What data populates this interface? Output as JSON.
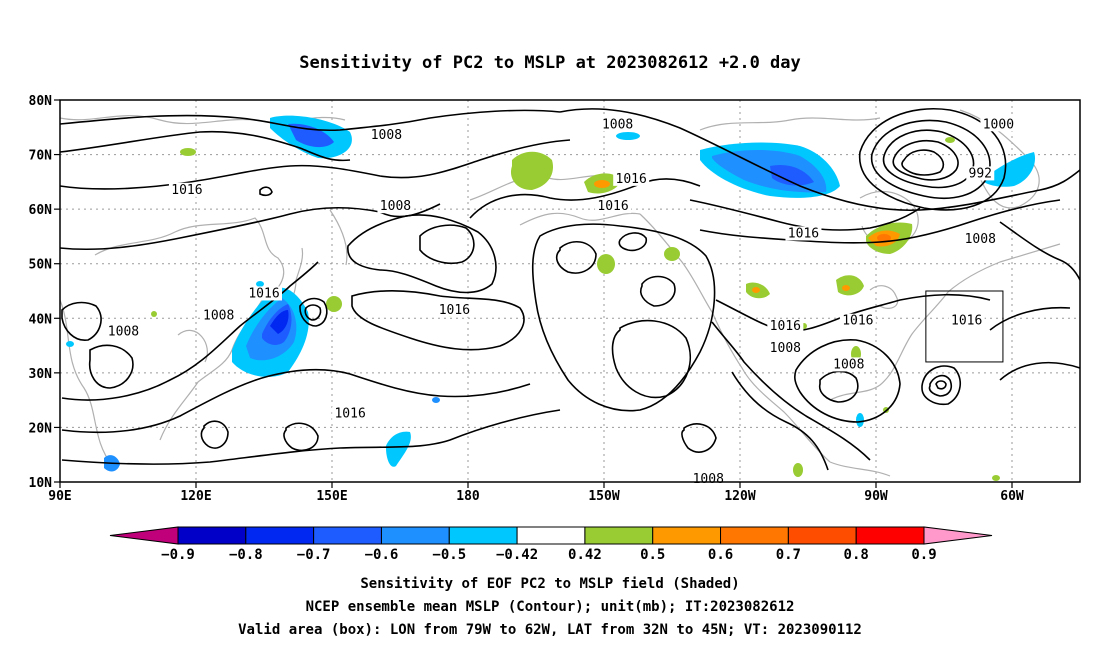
{
  "title": "Sensitivity of PC2 to MSLP at 2023082612 +2.0 day",
  "map": {
    "lat_labels": [
      "80N",
      "70N",
      "60N",
      "50N",
      "40N",
      "30N",
      "20N",
      "10N"
    ],
    "lon_labels": [
      "90E",
      "120E",
      "150E",
      "180",
      "150W",
      "120W",
      "90W",
      "60W"
    ],
    "lat_range": [
      10,
      80
    ],
    "lon_range": [
      90,
      315
    ]
  },
  "contours": {
    "unit": "mb",
    "labels": [
      {
        "text": "1008",
        "lon": 162,
        "lat": 73
      },
      {
        "text": "1016",
        "lon": 118,
        "lat": 63
      },
      {
        "text": "1008",
        "lon": 164,
        "lat": 60
      },
      {
        "text": "1016",
        "lon": 135,
        "lat": 44
      },
      {
        "text": "1008",
        "lon": 125,
        "lat": 40
      },
      {
        "text": "1008",
        "lon": 104,
        "lat": 37
      },
      {
        "text": "1016",
        "lon": 177,
        "lat": 41
      },
      {
        "text": "1016",
        "lon": 154,
        "lat": 22
      },
      {
        "text": "1008",
        "lon": 213,
        "lat": 75
      },
      {
        "text": "1016",
        "lon": 216,
        "lat": 65
      },
      {
        "text": "1016",
        "lon": 212,
        "lat": 60
      },
      {
        "text": "1016",
        "lon": 254,
        "lat": 55
      },
      {
        "text": "1000",
        "lon": 297,
        "lat": 75
      },
      {
        "text": "992",
        "lon": 293,
        "lat": 66
      },
      {
        "text": "1008",
        "lon": 293,
        "lat": 54
      },
      {
        "text": "1016",
        "lon": 250,
        "lat": 38
      },
      {
        "text": "1016",
        "lon": 266,
        "lat": 39
      },
      {
        "text": "1008",
        "lon": 250,
        "lat": 34
      },
      {
        "text": "1008",
        "lon": 264,
        "lat": 31
      },
      {
        "text": "1016",
        "lon": 290,
        "lat": 39
      },
      {
        "text": "1008",
        "lon": 233,
        "lat": 10
      }
    ]
  },
  "shading": {
    "colors": {
      "neg_0.9": "#c0007a",
      "neg_0.8": "#0000c8",
      "neg_0.7": "#0028f0",
      "neg_0.6": "#1e5cff",
      "neg_0.5": "#1e90ff",
      "neg_0.42": "#00c8ff",
      "pos_0.42": "#99cc33",
      "pos_0.5": "#ff9900",
      "pos_0.6": "#ff7700",
      "pos_0.7": "#ff4d00",
      "pos_0.8": "#ff0000",
      "pos_0.9": "#ff99cc"
    }
  },
  "valid_box": {
    "lon_min": -79,
    "lon_max": -62,
    "lat_min": 32,
    "lat_max": 45
  },
  "colorbar": {
    "colors": [
      "#c0007a",
      "#0000c8",
      "#0028f0",
      "#1e5cff",
      "#1e90ff",
      "#00c8ff",
      "#ffffff",
      "#99cc33",
      "#ff9900",
      "#ff7700",
      "#ff4d00",
      "#ff0000",
      "#ff99cc"
    ],
    "tick_labels": [
      "−0.9",
      "−0.8",
      "−0.7",
      "−0.6",
      "−0.5",
      "−0.42",
      "0.42",
      "0.5",
      "0.6",
      "0.7",
      "0.8",
      "0.9"
    ]
  },
  "captions": [
    "Sensitivity of EOF PC2 to MSLP field (Shaded)",
    "NCEP ensemble mean MSLP (Contour); unit(mb); IT:2023082612",
    "Valid area (box): LON from 79W to 62W, LAT from 32N to 45N; VT: 2023090112"
  ]
}
